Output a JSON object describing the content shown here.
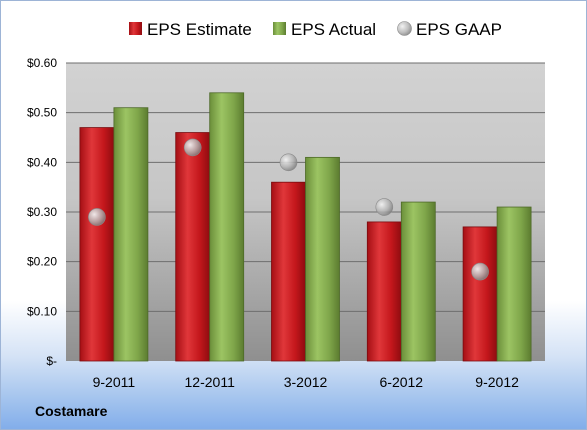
{
  "company": "Costamare",
  "chart_data": {
    "type": "bar",
    "title": "",
    "xlabel": "",
    "ylabel": "",
    "categories": [
      "9-2011",
      "12-2011",
      "3-2012",
      "6-2012",
      "9-2012"
    ],
    "ylim": [
      0,
      0.6
    ],
    "yticks": [
      0,
      0.1,
      0.2,
      0.3,
      0.4,
      0.5,
      0.6
    ],
    "ytick_labels": [
      "$-",
      "$0.10",
      "$0.20",
      "$0.30",
      "$0.40",
      "$0.50",
      "$0.60"
    ],
    "grid": true,
    "legend_position": "top",
    "series": [
      {
        "name": "EPS Estimate",
        "kind": "bar",
        "color": "#c4171c",
        "values": [
          0.47,
          0.46,
          0.36,
          0.28,
          0.27
        ]
      },
      {
        "name": "EPS Actual",
        "kind": "bar",
        "color": "#7fa64a",
        "values": [
          0.51,
          0.54,
          0.41,
          0.32,
          0.31
        ]
      },
      {
        "name": "EPS GAAP",
        "kind": "marker",
        "color": "#a9a9a9",
        "values": [
          0.29,
          0.43,
          0.4,
          0.31,
          0.18
        ]
      }
    ]
  }
}
